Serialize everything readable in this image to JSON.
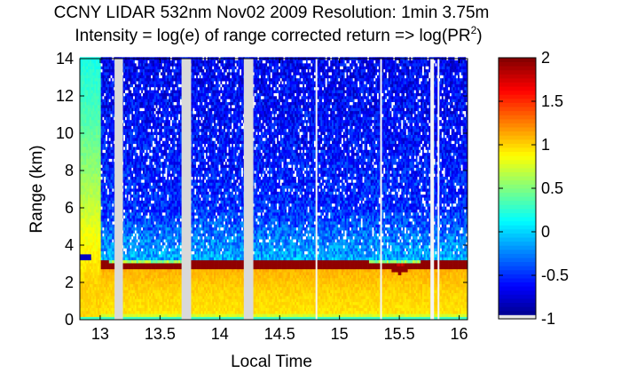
{
  "chart_data": {
    "type": "heatmap",
    "title_line1": "CCNY LIDAR 532nm Nov02 2009 Resolution: 1min 3.75m",
    "title_line2_prefix": "Intensity = log(e) of range corrected return => log(PR",
    "title_line2_superscript": "2",
    "title_line2_suffix": ")",
    "xlabel": "Local Time",
    "ylabel": "Range (km)",
    "xlim": [
      12.83,
      16.07
    ],
    "ylim": [
      0,
      14
    ],
    "xticks": [
      13,
      13.5,
      14,
      14.5,
      15,
      15.5,
      16
    ],
    "xtick_labels": [
      "13",
      "13.5",
      "14",
      "14.5",
      "15",
      "15.5",
      "16"
    ],
    "yticks": [
      0,
      2,
      4,
      6,
      8,
      10,
      12,
      14
    ],
    "ytick_labels": [
      "0",
      "2",
      "4",
      "6",
      "8",
      "10",
      "12",
      "14"
    ],
    "colorbar": {
      "colormap": "jet",
      "clim": [
        -1,
        2
      ],
      "ticks": [
        -1,
        -0.5,
        0,
        0.5,
        1,
        1.5,
        2
      ],
      "tick_labels": [
        "-1",
        "-0.5",
        "0",
        "0.5",
        "1",
        "1.5",
        "2"
      ]
    },
    "data_gaps_local_time": [
      [
        13.12,
        13.19
      ],
      [
        13.68,
        13.76
      ],
      [
        14.2,
        14.28
      ],
      [
        14.8,
        14.81
      ],
      [
        15.34,
        15.35
      ],
      [
        15.76,
        15.79
      ],
      [
        15.82,
        15.83
      ]
    ],
    "boundary_layer_top_km": [
      {
        "t": 12.86,
        "z": 3.45
      },
      {
        "t": 12.95,
        "z": 3.05
      },
      {
        "t": 13.1,
        "z": 2.95
      },
      {
        "t": 13.5,
        "z": 2.95
      },
      {
        "t": 14.0,
        "z": 3.0
      },
      {
        "t": 14.5,
        "z": 3.0
      },
      {
        "t": 15.0,
        "z": 3.0
      },
      {
        "t": 15.4,
        "z": 2.95
      },
      {
        "t": 15.5,
        "z": 2.7
      },
      {
        "t": 15.58,
        "z": 2.95
      },
      {
        "t": 16.05,
        "z": 3.05
      }
    ],
    "intensity_profile": [
      {
        "z_km": 0.1,
        "log_pr2": 0.3
      },
      {
        "z_km": 0.3,
        "log_pr2": 0.95
      },
      {
        "z_km": 1.5,
        "log_pr2": 1.0
      },
      {
        "z_km": 2.7,
        "log_pr2": 1.1
      },
      {
        "z_km": 2.95,
        "log_pr2": 1.95
      },
      {
        "z_km": 3.2,
        "log_pr2": -0.1
      },
      {
        "z_km": 6.0,
        "log_pr2": -0.5
      },
      {
        "z_km": 10.0,
        "log_pr2": -0.6
      },
      {
        "z_km": 14.0,
        "log_pr2": -0.65
      }
    ],
    "early_column_profile": [
      {
        "z_km": 2.0,
        "log_pr2": 1.0
      },
      {
        "z_km": 3.5,
        "log_pr2": 0.9
      },
      {
        "z_km": 5.0,
        "log_pr2": 0.8
      },
      {
        "z_km": 8.0,
        "log_pr2": 0.55
      },
      {
        "z_km": 11.0,
        "log_pr2": 0.35
      },
      {
        "z_km": 14.0,
        "log_pr2": 0.2
      }
    ]
  }
}
